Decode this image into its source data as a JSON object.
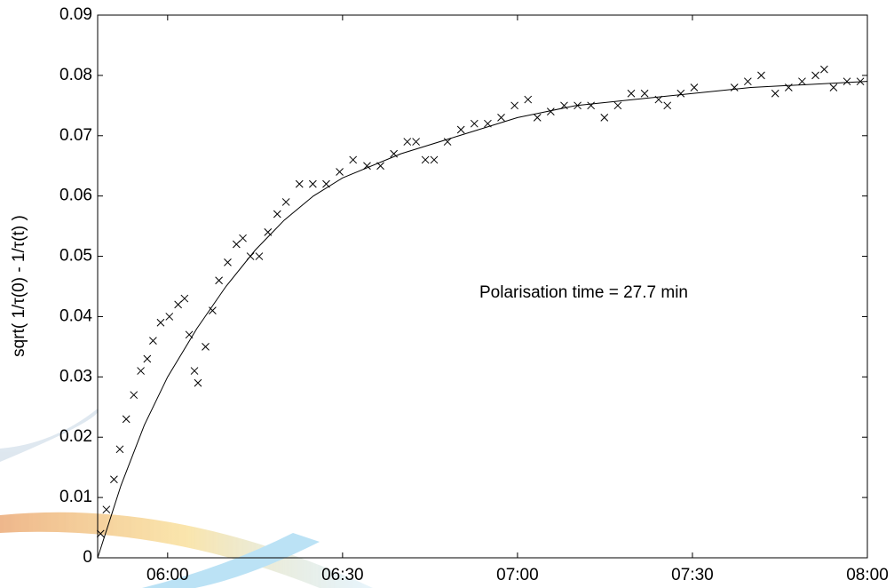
{
  "chart_data": {
    "type": "scatter",
    "ylabel": "sqrt( 1/τ(0) - 1/τ(t) )",
    "annotation": "Polarisation time = 27.7 min",
    "xlim": [
      348,
      480
    ],
    "ylim": [
      0,
      0.09
    ],
    "xticks": [
      {
        "value": 360,
        "label": "06:00"
      },
      {
        "value": 390,
        "label": "06:30"
      },
      {
        "value": 420,
        "label": "07:00"
      },
      {
        "value": 450,
        "label": "07:30"
      },
      {
        "value": 480,
        "label": "08:00"
      }
    ],
    "yticks": [
      0,
      0.01,
      0.02,
      0.03,
      0.04,
      0.05,
      0.06,
      0.07,
      0.08,
      0.09
    ],
    "series": [
      {
        "color": "#000000",
        "marker": "x",
        "x": [
          348.5,
          349.5,
          350.8,
          351.8,
          352.9,
          354.2,
          355.4,
          356.5,
          357.5,
          358.8,
          360.3,
          361.8,
          362.9,
          363.7,
          364.6,
          365.2,
          366.5,
          367.7,
          368.8,
          370.3,
          371.8,
          372.9,
          374.2,
          375.7,
          377.2,
          378.8,
          380.3,
          382.6,
          384.9,
          387.2,
          389.5,
          391.8,
          394.2,
          396.5,
          398.8,
          401.1,
          402.6,
          404.2,
          405.7,
          408.0,
          410.3,
          412.6,
          414.9,
          417.2,
          419.5,
          421.8,
          423.4,
          425.7,
          428.0,
          430.3,
          432.6,
          434.9,
          437.2,
          439.5,
          441.8,
          444.2,
          445.7,
          448.0,
          450.3,
          457.2,
          459.5,
          461.8,
          464.2,
          466.5,
          468.8,
          471.1,
          472.6,
          474.2,
          476.5,
          478.8
        ],
        "values": [
          0.004,
          0.008,
          0.013,
          0.018,
          0.023,
          0.027,
          0.031,
          0.033,
          0.036,
          0.039,
          0.04,
          0.042,
          0.043,
          0.037,
          0.031,
          0.029,
          0.035,
          0.041,
          0.046,
          0.049,
          0.052,
          0.053,
          0.05,
          0.05,
          0.054,
          0.057,
          0.059,
          0.062,
          0.062,
          0.062,
          0.064,
          0.066,
          0.065,
          0.065,
          0.067,
          0.069,
          0.069,
          0.066,
          0.066,
          0.069,
          0.071,
          0.072,
          0.072,
          0.073,
          0.075,
          0.076,
          0.073,
          0.074,
          0.075,
          0.075,
          0.075,
          0.073,
          0.075,
          0.077,
          0.077,
          0.076,
          0.075,
          0.077,
          0.078,
          0.078,
          0.079,
          0.08,
          0.077,
          0.078,
          0.079,
          0.08,
          0.081,
          0.078,
          0.079,
          0.079
        ]
      },
      {
        "color": "#000000",
        "marker": "line",
        "x": [
          348,
          352,
          356,
          360,
          365,
          370,
          375,
          380,
          385,
          390,
          400,
          410,
          420,
          430,
          440,
          450,
          460,
          470,
          480
        ],
        "values": [
          0,
          0.012,
          0.022,
          0.03,
          0.038,
          0.045,
          0.051,
          0.056,
          0.06,
          0.063,
          0.067,
          0.07,
          0.073,
          0.075,
          0.076,
          0.077,
          0.078,
          0.0785,
          0.079
        ]
      }
    ]
  }
}
